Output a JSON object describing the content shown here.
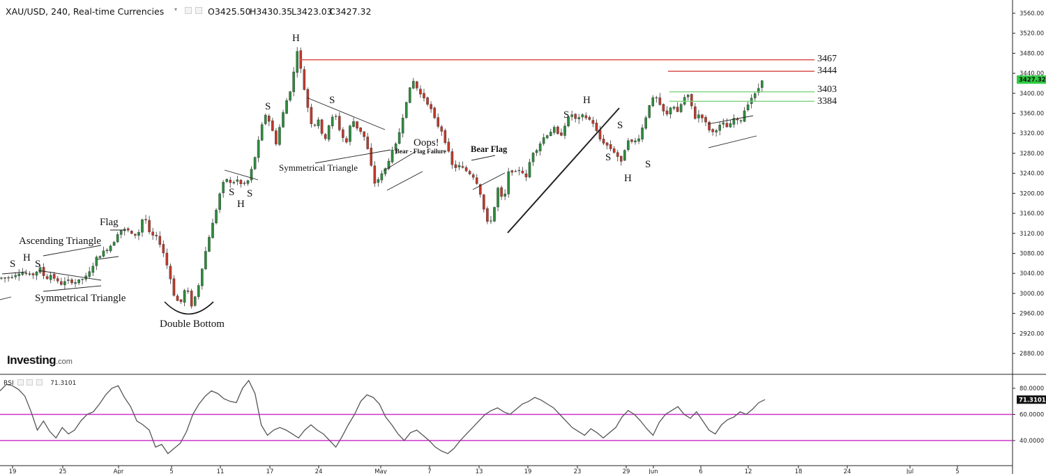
{
  "header": {
    "symbol": "XAU/USD, 240, Real-time Currencies",
    "open": "O3425.50",
    "high": "H3430.35",
    "low": "L3423.03",
    "close": "C3427.32"
  },
  "watermark": {
    "brand": "Investing",
    "domain": ".com"
  },
  "colors": {
    "up": "#2e8b3e",
    "down": "#c0392b",
    "resistance": "#d9534f",
    "support": "#7ed37e",
    "rsi_band": "#cc33cc",
    "rsi_line": "#555555",
    "last_price_bg": "#2ecc40",
    "rsi_value_bg": "#111111"
  },
  "chart_data": [
    {
      "type": "candlestick",
      "title": "XAU/USD, 240, Real-time Currencies",
      "ylim": [
        2845,
        3590
      ],
      "y_ticks": [
        "3560.00",
        "3520.00",
        "3480.00",
        "3440.00",
        "3400.00",
        "3360.00",
        "3320.00",
        "3280.00",
        "3240.00",
        "3200.00",
        "3160.00",
        "3120.00",
        "3080.00",
        "3040.00",
        "3000.00",
        "2960.00",
        "2920.00",
        "2880.00"
      ],
      "x_ticks": [
        "19",
        "25",
        "Apr",
        "5",
        "11",
        "17",
        "24",
        "May",
        "7",
        "13",
        "19",
        "23",
        "29",
        "Jun",
        "6",
        "12",
        "18",
        "24",
        "Jul",
        "5"
      ],
      "last_price": "3427.32",
      "path_points": [
        [
          0,
          3030
        ],
        [
          4,
          3032
        ],
        [
          8,
          3043
        ],
        [
          12,
          3035
        ],
        [
          15,
          3050
        ],
        [
          17,
          3028
        ],
        [
          19,
          3038
        ],
        [
          22,
          3018
        ],
        [
          25,
          3025
        ],
        [
          28,
          3022
        ],
        [
          32,
          3035
        ],
        [
          35,
          3070
        ],
        [
          38,
          3085
        ],
        [
          41,
          3100
        ],
        [
          43,
          3125
        ],
        [
          46,
          3128
        ],
        [
          48,
          3115
        ],
        [
          50,
          3120
        ],
        [
          52,
          3160
        ],
        [
          54,
          3118
        ],
        [
          57,
          3110
        ],
        [
          59,
          3080
        ],
        [
          61,
          3040
        ],
        [
          63,
          2990
        ],
        [
          65,
          2980
        ],
        [
          67,
          3015
        ],
        [
          69,
          2975
        ],
        [
          71,
          3005
        ],
        [
          73,
          3060
        ],
        [
          75,
          3110
        ],
        [
          77,
          3150
        ],
        [
          79,
          3200
        ],
        [
          81,
          3232
        ],
        [
          83,
          3218
        ],
        [
          85,
          3228
        ],
        [
          87,
          3215
        ],
        [
          89,
          3225
        ],
        [
          91,
          3260
        ],
        [
          93,
          3310
        ],
        [
          95,
          3360
        ],
        [
          97,
          3340
        ],
        [
          99,
          3300
        ],
        [
          101,
          3350
        ],
        [
          103,
          3390
        ],
        [
          105,
          3420
        ],
        [
          106,
          3495
        ],
        [
          107,
          3480
        ],
        [
          108,
          3440
        ],
        [
          110,
          3380
        ],
        [
          112,
          3330
        ],
        [
          114,
          3350
        ],
        [
          116,
          3300
        ],
        [
          118,
          3340
        ],
        [
          120,
          3360
        ],
        [
          122,
          3320
        ],
        [
          124,
          3300
        ],
        [
          126,
          3350
        ],
        [
          128,
          3330
        ],
        [
          130,
          3320
        ],
        [
          132,
          3280
        ],
        [
          134,
          3220
        ],
        [
          136,
          3232
        ],
        [
          138,
          3250
        ],
        [
          140,
          3280
        ],
        [
          142,
          3300
        ],
        [
          144,
          3350
        ],
        [
          146,
          3400
        ],
        [
          148,
          3425
        ],
        [
          150,
          3400
        ],
        [
          152,
          3390
        ],
        [
          154,
          3370
        ],
        [
          156,
          3340
        ],
        [
          158,
          3325
        ],
        [
          160,
          3290
        ],
        [
          162,
          3250
        ],
        [
          164,
          3255
        ],
        [
          166,
          3248
        ],
        [
          168,
          3240
        ],
        [
          170,
          3230
        ],
        [
          172,
          3195
        ],
        [
          174,
          3140
        ],
        [
          176,
          3150
        ],
        [
          178,
          3210
        ],
        [
          180,
          3180
        ],
        [
          182,
          3250
        ],
        [
          184,
          3240
        ],
        [
          186,
          3250
        ],
        [
          188,
          3230
        ],
        [
          190,
          3280
        ],
        [
          192,
          3290
        ],
        [
          194,
          3310
        ],
        [
          196,
          3320
        ],
        [
          198,
          3330
        ],
        [
          200,
          3310
        ],
        [
          202,
          3340
        ],
        [
          204,
          3360
        ],
        [
          206,
          3345
        ],
        [
          208,
          3355
        ],
        [
          210,
          3350
        ],
        [
          212,
          3340
        ],
        [
          214,
          3310
        ],
        [
          216,
          3300
        ],
        [
          218,
          3290
        ],
        [
          220,
          3280
        ],
        [
          222,
          3260
        ],
        [
          224,
          3310
        ],
        [
          226,
          3300
        ],
        [
          228,
          3310
        ],
        [
          230,
          3340
        ],
        [
          232,
          3380
        ],
        [
          234,
          3395
        ],
        [
          236,
          3370
        ],
        [
          238,
          3355
        ],
        [
          240,
          3380
        ],
        [
          242,
          3360
        ],
        [
          244,
          3390
        ],
        [
          246,
          3395
        ],
        [
          248,
          3350
        ],
        [
          250,
          3360
        ],
        [
          252,
          3340
        ],
        [
          254,
          3320
        ],
        [
          256,
          3330
        ],
        [
          258,
          3340
        ],
        [
          260,
          3330
        ],
        [
          262,
          3350
        ],
        [
          264,
          3340
        ],
        [
          266,
          3370
        ],
        [
          268,
          3390
        ],
        [
          270,
          3400
        ],
        [
          272,
          3428
        ]
      ]
    },
    {
      "type": "line",
      "title": "RSI",
      "series": [
        {
          "name": "RSI",
          "values": [
            78,
            83,
            82,
            79,
            74,
            62,
            48,
            55,
            47,
            42,
            50,
            45,
            48,
            55,
            60,
            62,
            68,
            75,
            80,
            82,
            73,
            66,
            55,
            52,
            48,
            35,
            37,
            30,
            34,
            38,
            47,
            60,
            68,
            74,
            78,
            76,
            72,
            70,
            69,
            80,
            86,
            76,
            52,
            44,
            48,
            50,
            48,
            45,
            42,
            48,
            52,
            48,
            45,
            40,
            35,
            43,
            52,
            60,
            70,
            75,
            73,
            68,
            58,
            52,
            45,
            40,
            46,
            48,
            44,
            40,
            35,
            32,
            30,
            34,
            40,
            45,
            50,
            55,
            60,
            63,
            65,
            62,
            60,
            64,
            68,
            70,
            73,
            71,
            68,
            65,
            60,
            55,
            50,
            47,
            44,
            49,
            46,
            42,
            46,
            50,
            58,
            63,
            60,
            55,
            49,
            44,
            54,
            60,
            63,
            66,
            60,
            57,
            62,
            55,
            48,
            45,
            52,
            56,
            58,
            62,
            60,
            64,
            69,
            71.31
          ]
        }
      ],
      "ylim": [
        20,
        90
      ],
      "y_ticks": [
        "80.0000",
        "60.0000",
        "40.0000"
      ],
      "bands": [
        60,
        40
      ],
      "current_value": "71.3101"
    }
  ],
  "annotations": {
    "shs1": {
      "s1": "S",
      "h": "H",
      "s2": "S"
    },
    "ascending_triangle": "Ascending Triangle",
    "flag": "Flag",
    "symmetrical_triangle_1": "Symmetrical Triangle",
    "double_bottom": "Double Bottom",
    "shs2": {
      "s1": "S",
      "h": "H",
      "s2": "S"
    },
    "s_label": "S",
    "h_top": "H",
    "s_after_top": "S",
    "symmetrical_triangle_2": "Symmetrical Triangle",
    "bear_flag_failure": "Bear - Flag Failure",
    "oops": "Oops!",
    "bear_flag": "Bear Flag",
    "h_mid": "H",
    "s_mid": "S",
    "shs3": {
      "s1": "S",
      "s2": "S",
      "h": "H",
      "s3": "S"
    },
    "levels": [
      "3467",
      "3444",
      "3403",
      "3384"
    ]
  }
}
